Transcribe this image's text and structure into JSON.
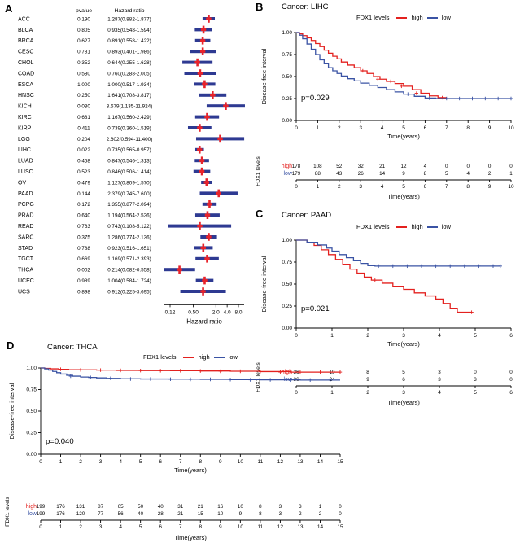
{
  "panels": {
    "A": "A",
    "B": "B",
    "C": "C",
    "D": "D"
  },
  "colors": {
    "high": "#e3211f",
    "low": "#3a53a4",
    "forest_bar": "#2e3a92",
    "forest_marker": "#e8232a"
  },
  "chart_data": [
    {
      "type": "forest",
      "panel": "A",
      "columns": {
        "pvalue": "pvalue",
        "hr": "Hazard ratio"
      },
      "xlabel": "Hazard ratio",
      "xticks": [
        "0.12",
        "0.50",
        "2.0",
        "4.0",
        "8.0"
      ],
      "xtick_values": [
        0.12,
        0.5,
        2,
        4,
        8
      ],
      "rows": [
        {
          "name": "ACC",
          "p": "0.190",
          "text": "1.287(0.882-1.877)",
          "hr": 1.287,
          "lo": 0.882,
          "hi": 1.877
        },
        {
          "name": "BLCA",
          "p": "0.805",
          "text": "0.935(0.548-1.594)",
          "hr": 0.935,
          "lo": 0.548,
          "hi": 1.594
        },
        {
          "name": "BRCA",
          "p": "0.627",
          "text": "0.891(0.558-1.422)",
          "hr": 0.891,
          "lo": 0.558,
          "hi": 1.422
        },
        {
          "name": "CESC",
          "p": "0.781",
          "text": "0.893(0.401-1.986)",
          "hr": 0.893,
          "lo": 0.401,
          "hi": 1.986
        },
        {
          "name": "CHOL",
          "p": "0.352",
          "text": "0.644(0.255-1.628)",
          "hr": 0.644,
          "lo": 0.255,
          "hi": 1.628
        },
        {
          "name": "COAD",
          "p": "0.580",
          "text": "0.760(0.288-2.005)",
          "hr": 0.76,
          "lo": 0.288,
          "hi": 2.005
        },
        {
          "name": "ESCA",
          "p": "1.000",
          "text": "1.000(0.517-1.934)",
          "hr": 1.0,
          "lo": 0.517,
          "hi": 1.934
        },
        {
          "name": "HNSC",
          "p": "0.250",
          "text": "1.641(0.708-3.817)",
          "hr": 1.641,
          "lo": 0.708,
          "hi": 3.817
        },
        {
          "name": "KICH",
          "p": "0.030",
          "text": "3.679(1.135-11.924)",
          "hr": 3.679,
          "lo": 1.135,
          "hi": 11.924
        },
        {
          "name": "KIRC",
          "p": "0.681",
          "text": "1.167(0.560-2.429)",
          "hr": 1.167,
          "lo": 0.56,
          "hi": 2.429
        },
        {
          "name": "KIRP",
          "p": "0.411",
          "text": "0.739(0.360-1.519)",
          "hr": 0.739,
          "lo": 0.36,
          "hi": 1.519
        },
        {
          "name": "LGG",
          "p": "0.204",
          "text": "2.602(0.594-11.400)",
          "hr": 2.602,
          "lo": 0.594,
          "hi": 11.4
        },
        {
          "name": "LIHC",
          "p": "0.022",
          "text": "0.735(0.565-0.957)",
          "hr": 0.735,
          "lo": 0.565,
          "hi": 0.957
        },
        {
          "name": "LUAD",
          "p": "0.458",
          "text": "0.847(0.546-1.313)",
          "hr": 0.847,
          "lo": 0.546,
          "hi": 1.313
        },
        {
          "name": "LUSC",
          "p": "0.523",
          "text": "0.846(0.506-1.414)",
          "hr": 0.846,
          "lo": 0.506,
          "hi": 1.414
        },
        {
          "name": "OV",
          "p": "0.479",
          "text": "1.127(0.809-1.570)",
          "hr": 1.127,
          "lo": 0.809,
          "hi": 1.57
        },
        {
          "name": "PAAD",
          "p": "0.144",
          "text": "2.379(0.745-7.600)",
          "hr": 2.379,
          "lo": 0.745,
          "hi": 7.6
        },
        {
          "name": "PCPG",
          "p": "0.172",
          "text": "1.355(0.877-2.094)",
          "hr": 1.355,
          "lo": 0.877,
          "hi": 2.094
        },
        {
          "name": "PRAD",
          "p": "0.640",
          "text": "1.194(0.564-2.526)",
          "hr": 1.194,
          "lo": 0.564,
          "hi": 2.526
        },
        {
          "name": "READ",
          "p": "0.763",
          "text": "0.743(0.108-5.122)",
          "hr": 0.743,
          "lo": 0.108,
          "hi": 5.122
        },
        {
          "name": "SARC",
          "p": "0.375",
          "text": "1.286(0.774-2.136)",
          "hr": 1.286,
          "lo": 0.774,
          "hi": 2.136
        },
        {
          "name": "STAD",
          "p": "0.788",
          "text": "0.923(0.516-1.651)",
          "hr": 0.923,
          "lo": 0.516,
          "hi": 1.651
        },
        {
          "name": "TGCT",
          "p": "0.669",
          "text": "1.169(0.571-2.393)",
          "hr": 1.169,
          "lo": 0.571,
          "hi": 2.393
        },
        {
          "name": "THCA",
          "p": "0.002",
          "text": "0.214(0.082-0.558)",
          "hr": 0.214,
          "lo": 0.082,
          "hi": 0.558
        },
        {
          "name": "UCEC",
          "p": "0.989",
          "text": "1.004(0.584-1.724)",
          "hr": 1.004,
          "lo": 0.584,
          "hi": 1.724
        },
        {
          "name": "UCS",
          "p": "0.898",
          "text": "0.912(0.225-3.695)",
          "hr": 0.912,
          "lo": 0.225,
          "hi": 3.695
        }
      ]
    },
    {
      "type": "km",
      "panel": "B",
      "title": "Cancer: LIHC",
      "pvalue": "p=0.029",
      "legend": {
        "title": "FDX1 levels",
        "high": "high",
        "low": "low"
      },
      "ylabel": "Disease-free interval",
      "xlabel": "Time(years)",
      "yticks": [
        "0.00",
        "0.25",
        "0.50",
        "0.75",
        "1.00"
      ],
      "xticks": [
        0,
        1,
        2,
        3,
        4,
        5,
        6,
        7,
        8,
        9,
        10
      ],
      "series": {
        "high": [
          [
            0,
            1.0
          ],
          [
            0.15,
            0.985
          ],
          [
            0.3,
            0.965
          ],
          [
            0.5,
            0.94
          ],
          [
            0.7,
            0.91
          ],
          [
            0.9,
            0.875
          ],
          [
            1.1,
            0.84
          ],
          [
            1.3,
            0.8
          ],
          [
            1.5,
            0.765
          ],
          [
            1.7,
            0.73
          ],
          [
            1.9,
            0.7
          ],
          [
            2.1,
            0.665
          ],
          [
            2.4,
            0.63
          ],
          [
            2.7,
            0.6
          ],
          [
            3.0,
            0.565
          ],
          [
            3.3,
            0.535
          ],
          [
            3.6,
            0.5
          ],
          [
            3.9,
            0.47
          ],
          [
            4.2,
            0.445
          ],
          [
            4.6,
            0.42
          ],
          [
            5.0,
            0.39
          ],
          [
            5.4,
            0.35
          ],
          [
            5.8,
            0.31
          ],
          [
            6.2,
            0.28
          ],
          [
            6.6,
            0.26
          ],
          [
            7.0,
            0.26
          ]
        ],
        "low": [
          [
            0,
            1.0
          ],
          [
            0.15,
            0.97
          ],
          [
            0.3,
            0.93
          ],
          [
            0.5,
            0.87
          ],
          [
            0.7,
            0.81
          ],
          [
            0.9,
            0.75
          ],
          [
            1.1,
            0.69
          ],
          [
            1.3,
            0.645
          ],
          [
            1.5,
            0.6
          ],
          [
            1.7,
            0.565
          ],
          [
            1.9,
            0.535
          ],
          [
            2.1,
            0.505
          ],
          [
            2.4,
            0.475
          ],
          [
            2.7,
            0.45
          ],
          [
            3.0,
            0.425
          ],
          [
            3.4,
            0.4
          ],
          [
            3.8,
            0.375
          ],
          [
            4.2,
            0.35
          ],
          [
            4.6,
            0.325
          ],
          [
            5.0,
            0.3
          ],
          [
            5.5,
            0.275
          ],
          [
            6.0,
            0.255
          ],
          [
            6.5,
            0.25
          ],
          [
            10.0,
            0.25
          ]
        ]
      },
      "censor": {
        "high": [
          [
            3.1,
            0.565
          ],
          [
            3.8,
            0.47
          ],
          [
            4.4,
            0.445
          ],
          [
            4.9,
            0.39
          ],
          [
            5.6,
            0.31
          ],
          [
            6.8,
            0.26
          ]
        ],
        "low": [
          [
            5.2,
            0.3
          ],
          [
            6.2,
            0.255
          ],
          [
            7.0,
            0.25
          ],
          [
            7.6,
            0.25
          ],
          [
            8.2,
            0.25
          ],
          [
            8.8,
            0.25
          ],
          [
            9.4,
            0.25
          ],
          [
            10.0,
            0.25
          ]
        ]
      },
      "risk_table": {
        "label": "FDX1 levels",
        "times": [
          0,
          1,
          2,
          3,
          4,
          5,
          6,
          7,
          8,
          9,
          10
        ],
        "rows": {
          "high": [
            178,
            108,
            52,
            32,
            21,
            12,
            4,
            0,
            0,
            0,
            0
          ],
          "low": [
            179,
            88,
            43,
            26,
            14,
            9,
            8,
            5,
            4,
            2,
            1
          ]
        }
      }
    },
    {
      "type": "km",
      "panel": "C",
      "title": "Cancer: PAAD",
      "pvalue": "p=0.021",
      "legend": {
        "title": "FDX1 levels",
        "high": "high",
        "low": "low"
      },
      "ylabel": "Disease-free interval",
      "xlabel": "Time(years)",
      "yticks": [
        "0.00",
        "0.25",
        "0.50",
        "0.75",
        "1.00"
      ],
      "xticks": [
        0,
        1,
        2,
        3,
        4,
        5,
        6
      ],
      "series": {
        "high": [
          [
            0,
            1.0
          ],
          [
            0.3,
            0.97
          ],
          [
            0.5,
            0.94
          ],
          [
            0.7,
            0.89
          ],
          [
            0.9,
            0.835
          ],
          [
            1.1,
            0.78
          ],
          [
            1.3,
            0.725
          ],
          [
            1.5,
            0.67
          ],
          [
            1.7,
            0.625
          ],
          [
            1.9,
            0.58
          ],
          [
            2.1,
            0.545
          ],
          [
            2.4,
            0.51
          ],
          [
            2.7,
            0.475
          ],
          [
            3.0,
            0.44
          ],
          [
            3.3,
            0.4
          ],
          [
            3.6,
            0.365
          ],
          [
            3.9,
            0.33
          ],
          [
            4.1,
            0.28
          ],
          [
            4.3,
            0.225
          ],
          [
            4.5,
            0.18
          ],
          [
            4.9,
            0.18
          ]
        ],
        "low": [
          [
            0,
            1.0
          ],
          [
            0.3,
            0.975
          ],
          [
            0.6,
            0.945
          ],
          [
            0.85,
            0.91
          ],
          [
            1.0,
            0.875
          ],
          [
            1.2,
            0.835
          ],
          [
            1.4,
            0.8
          ],
          [
            1.6,
            0.765
          ],
          [
            1.8,
            0.735
          ],
          [
            2.0,
            0.71
          ],
          [
            2.2,
            0.705
          ],
          [
            5.7,
            0.705
          ]
        ]
      },
      "censor": {
        "high": [
          [
            2.2,
            0.545
          ],
          [
            4.9,
            0.18
          ]
        ],
        "low": [
          [
            2.3,
            0.705
          ],
          [
            2.7,
            0.705
          ],
          [
            3.1,
            0.705
          ],
          [
            3.5,
            0.705
          ],
          [
            3.9,
            0.705
          ],
          [
            4.3,
            0.705
          ],
          [
            4.7,
            0.705
          ],
          [
            5.1,
            0.705
          ],
          [
            5.5,
            0.705
          ],
          [
            5.7,
            0.705
          ]
        ]
      },
      "risk_table": {
        "label": "FDX1 levels",
        "times": [
          0,
          1,
          2,
          3,
          4,
          5,
          6
        ],
        "rows": {
          "high": [
            36,
            19,
            8,
            5,
            3,
            0,
            0
          ],
          "low": [
            36,
            24,
            9,
            6,
            3,
            3,
            0
          ]
        }
      }
    },
    {
      "type": "km",
      "panel": "D",
      "title": "Cancer: THCA",
      "pvalue": "p=0.040",
      "legend": {
        "title": "FDX1 levels",
        "high": "high",
        "low": "low"
      },
      "ylabel": "Disease-free interval",
      "xlabel": "Time(years)",
      "yticks": [
        "0.00",
        "0.25",
        "0.50",
        "0.75",
        "1.00"
      ],
      "xticks": [
        0,
        1,
        2,
        3,
        4,
        5,
        6,
        7,
        8,
        9,
        10,
        11,
        12,
        13,
        14,
        15
      ],
      "series": {
        "high": [
          [
            0,
            1.0
          ],
          [
            0.2,
            0.995
          ],
          [
            0.5,
            0.99
          ],
          [
            0.9,
            0.985
          ],
          [
            1.4,
            0.98
          ],
          [
            2.0,
            0.978
          ],
          [
            2.8,
            0.975
          ],
          [
            3.8,
            0.972
          ],
          [
            5.0,
            0.97
          ],
          [
            6.5,
            0.968
          ],
          [
            8.0,
            0.965
          ],
          [
            9.5,
            0.962
          ],
          [
            11.0,
            0.958
          ],
          [
            12.5,
            0.952
          ],
          [
            15.0,
            0.952
          ]
        ],
        "low": [
          [
            0,
            1.0
          ],
          [
            0.2,
            0.99
          ],
          [
            0.4,
            0.975
          ],
          [
            0.6,
            0.96
          ],
          [
            0.8,
            0.945
          ],
          [
            1.0,
            0.93
          ],
          [
            1.3,
            0.915
          ],
          [
            1.6,
            0.905
          ],
          [
            2.0,
            0.895
          ],
          [
            2.4,
            0.89
          ],
          [
            2.8,
            0.885
          ],
          [
            3.3,
            0.88
          ],
          [
            4.0,
            0.875
          ],
          [
            5.0,
            0.872
          ],
          [
            6.5,
            0.87
          ],
          [
            8.0,
            0.868
          ],
          [
            9.5,
            0.865
          ],
          [
            11.0,
            0.862
          ],
          [
            13.0,
            0.86
          ],
          [
            15.0,
            0.86
          ]
        ]
      },
      "censor": {
        "high": [
          [
            1.0,
            0.985
          ],
          [
            2.0,
            0.978
          ],
          [
            3.0,
            0.975
          ],
          [
            4.0,
            0.972
          ],
          [
            5.0,
            0.97
          ],
          [
            6.0,
            0.968
          ],
          [
            7.0,
            0.968
          ],
          [
            8.0,
            0.965
          ],
          [
            9.0,
            0.962
          ],
          [
            10.0,
            0.962
          ],
          [
            11.0,
            0.958
          ],
          [
            12.0,
            0.952
          ],
          [
            13.0,
            0.952
          ],
          [
            14.0,
            0.952
          ],
          [
            15.0,
            0.952
          ]
        ],
        "low": [
          [
            1.5,
            0.905
          ],
          [
            2.5,
            0.89
          ],
          [
            3.5,
            0.88
          ],
          [
            4.5,
            0.872
          ],
          [
            5.5,
            0.872
          ],
          [
            6.5,
            0.87
          ],
          [
            7.5,
            0.868
          ],
          [
            8.5,
            0.868
          ],
          [
            9.5,
            0.865
          ],
          [
            10.5,
            0.862
          ],
          [
            11.5,
            0.862
          ],
          [
            12.5,
            0.86
          ],
          [
            13.5,
            0.86
          ],
          [
            14.5,
            0.86
          ]
        ]
      },
      "risk_table": {
        "label": "FDX1 levels",
        "times": [
          0,
          1,
          2,
          3,
          4,
          5,
          6,
          7,
          8,
          9,
          10,
          11,
          12,
          13,
          14,
          15
        ],
        "rows": {
          "high": [
            199,
            176,
            131,
            87,
            65,
            50,
            40,
            31,
            21,
            16,
            10,
            8,
            3,
            3,
            1,
            0
          ],
          "low": [
            199,
            176,
            120,
            77,
            56,
            40,
            28,
            21,
            15,
            10,
            9,
            8,
            3,
            2,
            2,
            0
          ]
        }
      }
    }
  ]
}
